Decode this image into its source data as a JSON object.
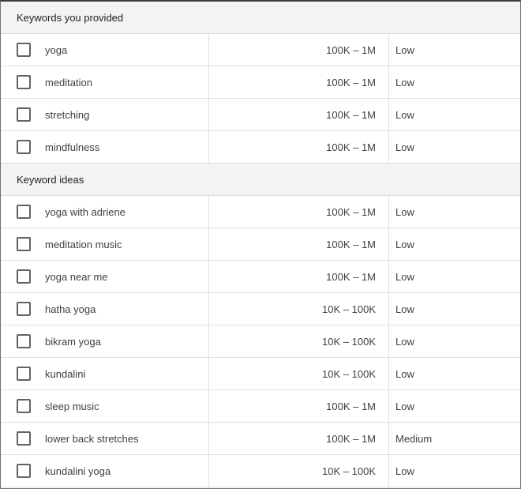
{
  "sections": [
    {
      "title": "Keywords you provided",
      "rows": [
        {
          "keyword": "yoga",
          "volume": "100K – 1M",
          "competition": "Low"
        },
        {
          "keyword": "meditation",
          "volume": "100K – 1M",
          "competition": "Low"
        },
        {
          "keyword": "stretching",
          "volume": "100K – 1M",
          "competition": "Low"
        },
        {
          "keyword": "mindfulness",
          "volume": "100K – 1M",
          "competition": "Low"
        }
      ]
    },
    {
      "title": "Keyword ideas",
      "rows": [
        {
          "keyword": "yoga with adriene",
          "volume": "100K – 1M",
          "competition": "Low"
        },
        {
          "keyword": "meditation music",
          "volume": "100K – 1M",
          "competition": "Low"
        },
        {
          "keyword": "yoga near me",
          "volume": "100K – 1M",
          "competition": "Low"
        },
        {
          "keyword": "hatha yoga",
          "volume": "10K – 100K",
          "competition": "Low"
        },
        {
          "keyword": "bikram yoga",
          "volume": "10K – 100K",
          "competition": "Low"
        },
        {
          "keyword": "kundalini",
          "volume": "10K – 100K",
          "competition": "Low"
        },
        {
          "keyword": "sleep music",
          "volume": "100K – 1M",
          "competition": "Low"
        },
        {
          "keyword": "lower back stretches",
          "volume": "100K – 1M",
          "competition": "Medium"
        },
        {
          "keyword": "kundalini yoga",
          "volume": "10K – 100K",
          "competition": "Low"
        }
      ]
    }
  ]
}
